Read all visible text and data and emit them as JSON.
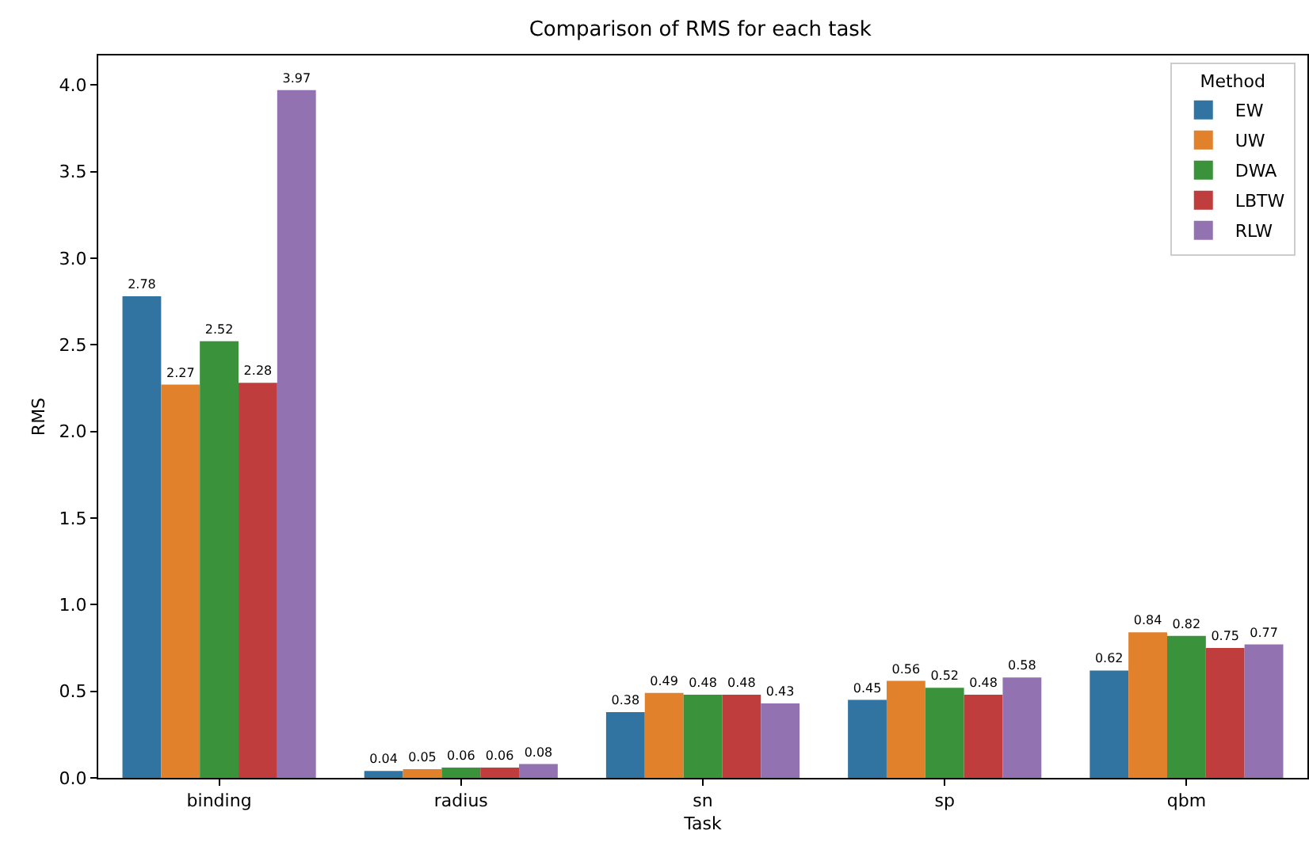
{
  "chart_data": {
    "type": "bar",
    "title": "Comparison of RMS for each task",
    "xlabel": "Task",
    "ylabel": "RMS",
    "legend_title": "Method",
    "categories": [
      "binding",
      "radius",
      "sn",
      "sp",
      "qbm"
    ],
    "series": [
      {
        "name": "EW",
        "color": "#3274a1",
        "values": [
          2.78,
          0.04,
          0.38,
          0.45,
          0.62
        ]
      },
      {
        "name": "UW",
        "color": "#e1812c",
        "values": [
          2.27,
          0.05,
          0.49,
          0.56,
          0.84
        ]
      },
      {
        "name": "DWA",
        "color": "#3a923a",
        "values": [
          2.52,
          0.06,
          0.48,
          0.52,
          0.82
        ]
      },
      {
        "name": "LBTW",
        "color": "#c03d3e",
        "values": [
          2.28,
          0.06,
          0.48,
          0.48,
          0.75
        ]
      },
      {
        "name": "RLW",
        "color": "#9372b2",
        "values": [
          3.97,
          0.08,
          0.43,
          0.58,
          0.77
        ]
      }
    ],
    "ylim": [
      0,
      4.17
    ],
    "yticks": [
      {
        "value": 0,
        "label": "0.0"
      },
      {
        "value": 0.5,
        "label": "0.5"
      },
      {
        "value": 1,
        "label": "1.0"
      },
      {
        "value": 1.5,
        "label": "1.5"
      },
      {
        "value": 2,
        "label": "2.0"
      },
      {
        "value": 2.5,
        "label": "2.5"
      },
      {
        "value": 3,
        "label": "3.0"
      },
      {
        "value": 3.5,
        "label": "3.5"
      },
      {
        "value": 4,
        "label": "4.0"
      }
    ],
    "data_labels": true,
    "grid": false,
    "legend": "top right"
  }
}
